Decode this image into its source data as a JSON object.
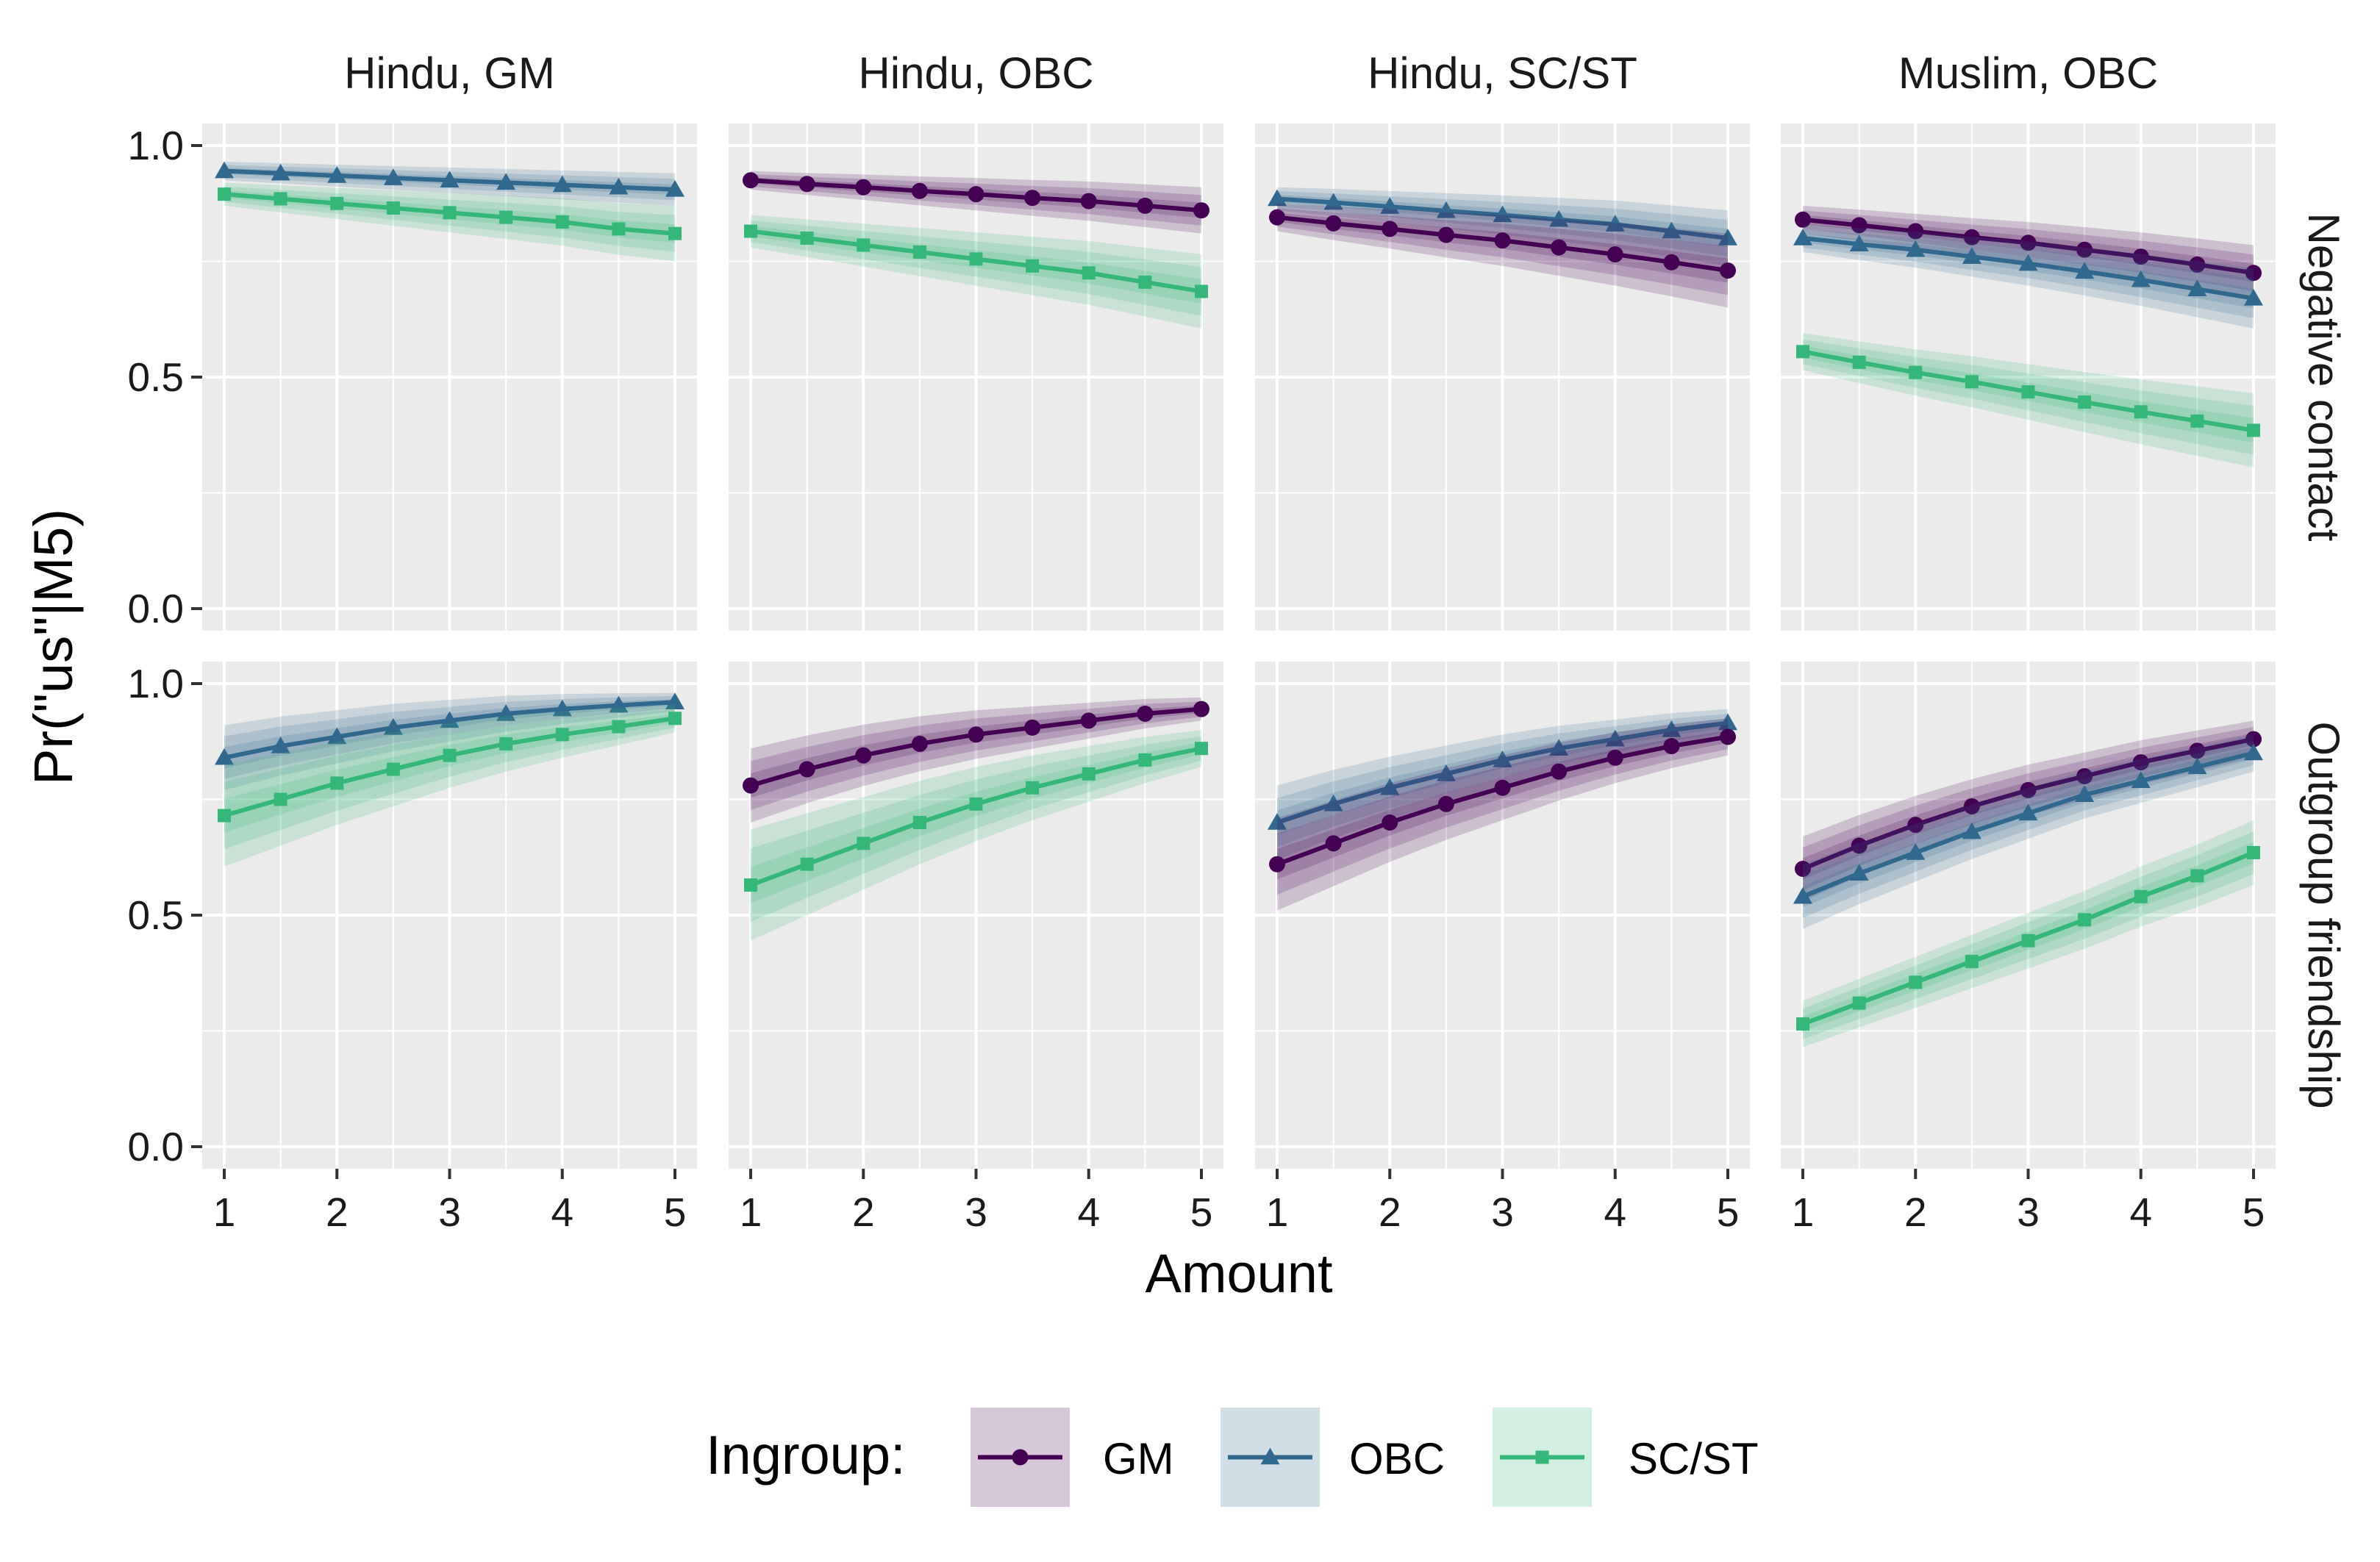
{
  "chart_data": {
    "type": "line",
    "xlabel": "Amount",
    "ylabel": "Pr(\"us\"|M5)",
    "ylim": [
      0,
      1
    ],
    "xlim": [
      1,
      5
    ],
    "x_ticks": [
      "1",
      "2",
      "3",
      "4",
      "5"
    ],
    "y_ticks": [
      "0.0",
      "0.5",
      "1.0"
    ],
    "grid": true,
    "legend": {
      "title": "Ingroup:",
      "position": "bottom",
      "entries": [
        {
          "name": "GM",
          "marker": "circle"
        },
        {
          "name": "OBC",
          "marker": "triangle"
        },
        {
          "name": "SC/ST",
          "marker": "square"
        }
      ]
    },
    "colors": {
      "GM": "#440154",
      "OBC": "#31688e",
      "SC/ST": "#35b779",
      "panel_bg": "#ebebeb",
      "grid": "#ffffff"
    },
    "facet_columns": [
      "Hindu, GM",
      "Hindu, OBC",
      "Hindu, SC/ST",
      "Muslim, OBC"
    ],
    "facet_rows": [
      "Negative contact",
      "Outgroup friendship"
    ],
    "x": [
      1,
      1.5,
      2,
      2.5,
      3,
      3.5,
      4,
      4.5,
      5
    ],
    "panels": [
      {
        "row": 0,
        "col": 0,
        "series": [
          {
            "name": "OBC",
            "values": [
              0.945,
              0.94,
              0.935,
              0.93,
              0.925,
              0.92,
              0.915,
              0.91,
              0.905
            ],
            "band": [
              0.02,
              0.035
            ]
          },
          {
            "name": "SC/ST",
            "values": [
              0.895,
              0.885,
              0.875,
              0.865,
              0.855,
              0.845,
              0.835,
              0.82,
              0.81
            ],
            "band": [
              0.025,
              0.06
            ]
          }
        ]
      },
      {
        "row": 0,
        "col": 1,
        "series": [
          {
            "name": "GM",
            "values": [
              0.925,
              0.917,
              0.91,
              0.902,
              0.895,
              0.887,
              0.88,
              0.87,
              0.86
            ],
            "band": [
              0.02,
              0.05
            ]
          },
          {
            "name": "SC/ST",
            "values": [
              0.815,
              0.8,
              0.785,
              0.77,
              0.755,
              0.74,
              0.725,
              0.705,
              0.685
            ],
            "band": [
              0.035,
              0.08
            ]
          }
        ]
      },
      {
        "row": 0,
        "col": 2,
        "series": [
          {
            "name": "OBC",
            "values": [
              0.885,
              0.877,
              0.868,
              0.859,
              0.85,
              0.84,
              0.83,
              0.815,
              0.8
            ],
            "band": [
              0.025,
              0.06
            ]
          },
          {
            "name": "GM",
            "values": [
              0.845,
              0.832,
              0.82,
              0.807,
              0.795,
              0.78,
              0.765,
              0.748,
              0.73
            ],
            "band": [
              0.03,
              0.08
            ]
          }
        ]
      },
      {
        "row": 0,
        "col": 3,
        "series": [
          {
            "name": "GM",
            "values": [
              0.84,
              0.828,
              0.815,
              0.802,
              0.79,
              0.775,
              0.76,
              0.743,
              0.725
            ],
            "band": [
              0.03,
              0.06
            ]
          },
          {
            "name": "OBC",
            "values": [
              0.8,
              0.787,
              0.775,
              0.76,
              0.745,
              0.728,
              0.71,
              0.69,
              0.67
            ],
            "band": [
              0.03,
              0.065
            ]
          },
          {
            "name": "SC/ST",
            "values": [
              0.555,
              0.532,
              0.51,
              0.49,
              0.468,
              0.446,
              0.425,
              0.405,
              0.385
            ],
            "band": [
              0.04,
              0.08
            ]
          }
        ]
      },
      {
        "row": 1,
        "col": 0,
        "series": [
          {
            "name": "OBC",
            "values": [
              0.84,
              0.865,
              0.885,
              0.905,
              0.92,
              0.935,
              0.945,
              0.953,
              0.96
            ],
            "band": [
              0.07,
              0.02
            ]
          },
          {
            "name": "SC/ST",
            "values": [
              0.715,
              0.75,
              0.785,
              0.815,
              0.845,
              0.87,
              0.89,
              0.907,
              0.925
            ],
            "band": [
              0.11,
              0.03
            ]
          }
        ]
      },
      {
        "row": 1,
        "col": 1,
        "series": [
          {
            "name": "GM",
            "values": [
              0.78,
              0.815,
              0.845,
              0.87,
              0.89,
              0.905,
              0.92,
              0.935,
              0.945
            ],
            "band": [
              0.08,
              0.025
            ]
          },
          {
            "name": "SC/ST",
            "values": [
              0.565,
              0.61,
              0.655,
              0.7,
              0.74,
              0.775,
              0.805,
              0.835,
              0.86
            ],
            "band": [
              0.12,
              0.04
            ]
          }
        ]
      },
      {
        "row": 1,
        "col": 2,
        "series": [
          {
            "name": "OBC",
            "values": [
              0.7,
              0.74,
              0.775,
              0.805,
              0.835,
              0.86,
              0.88,
              0.9,
              0.915
            ],
            "band": [
              0.08,
              0.03
            ]
          },
          {
            "name": "GM",
            "values": [
              0.61,
              0.655,
              0.7,
              0.74,
              0.775,
              0.81,
              0.84,
              0.865,
              0.885
            ],
            "band": [
              0.1,
              0.04
            ]
          }
        ]
      },
      {
        "row": 1,
        "col": 3,
        "series": [
          {
            "name": "GM",
            "values": [
              0.6,
              0.65,
              0.695,
              0.735,
              0.77,
              0.8,
              0.83,
              0.855,
              0.88
            ],
            "band": [
              0.07,
              0.04
            ]
          },
          {
            "name": "OBC",
            "values": [
              0.54,
              0.59,
              0.635,
              0.68,
              0.72,
              0.76,
              0.79,
              0.82,
              0.85
            ],
            "band": [
              0.07,
              0.04
            ]
          },
          {
            "name": "SC/ST",
            "values": [
              0.265,
              0.31,
              0.355,
              0.4,
              0.445,
              0.49,
              0.54,
              0.585,
              0.635
            ],
            "band": [
              0.05,
              0.07
            ]
          }
        ]
      }
    ]
  }
}
